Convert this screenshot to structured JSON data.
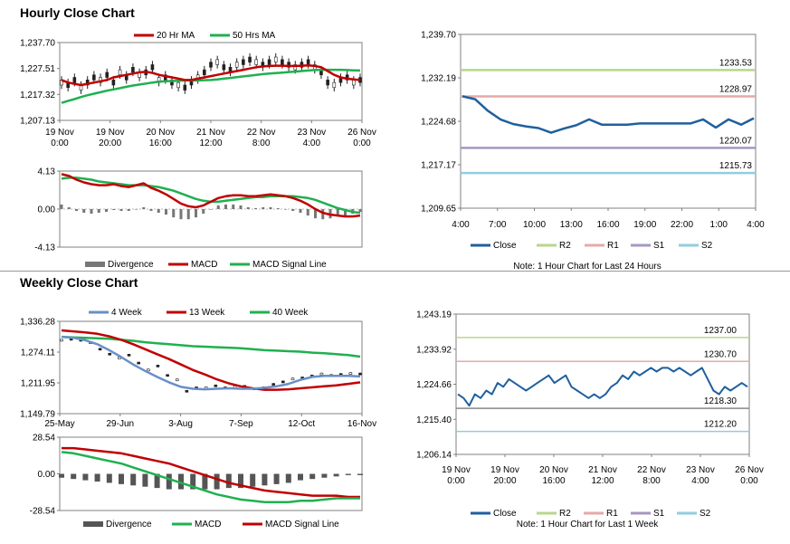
{
  "sections": {
    "hourly_title": "Hourly Close Chart",
    "weekly_title": "Weekly Close Chart"
  },
  "colors": {
    "close": "#1f5f9e",
    "ma20": "#c00000",
    "ma50": "#20b050",
    "macd_red": "#c00000",
    "signal_green": "#20b050",
    "divergence": "#777777",
    "r2": "#b8d68c",
    "r1": "#e6a9a9",
    "s1": "#a896c0",
    "s2": "#92cddc",
    "wk4": "#6a8fc8",
    "wk13": "#c00000",
    "wk40": "#20b050"
  },
  "chart_data": [
    {
      "id": "hourly_price",
      "type": "line",
      "legend": [
        "20 Hr MA",
        "50 Hrs MA"
      ],
      "y_ticks": [
        "1,237.70",
        "1,227.51",
        "1,217.32",
        "1,207.13"
      ],
      "ylim": [
        1207.13,
        1237.7
      ],
      "x_ticks": [
        [
          "19 Nov",
          "0:00"
        ],
        [
          "19 Nov",
          "20:00"
        ],
        [
          "20 Nov",
          "16:00"
        ],
        [
          "21 Nov",
          "12:00"
        ],
        [
          "22 Nov",
          "8:00"
        ],
        [
          "23 Nov",
          "4:00"
        ],
        [
          "26 Nov",
          "0:00"
        ]
      ],
      "series": [
        {
          "name": "20 Hr MA",
          "values": [
            1223,
            1222,
            1221.5,
            1221,
            1221.5,
            1222,
            1222.5,
            1223,
            1224,
            1224.5,
            1225,
            1225.5,
            1226,
            1226.2,
            1225.8,
            1225,
            1224.5,
            1224,
            1223.5,
            1223,
            1223,
            1223.5,
            1224,
            1224.5,
            1225,
            1225.5,
            1226,
            1226.5,
            1227,
            1227.5,
            1228,
            1228.3,
            1228.5,
            1228.6,
            1228.6,
            1228.5,
            1228.5,
            1228.6,
            1228.7,
            1228.5,
            1228,
            1226.5,
            1225,
            1224,
            1223.5,
            1223.2,
            1223
          ]
        },
        {
          "name": "50 Hrs MA",
          "values": [
            1214,
            1214.8,
            1215.5,
            1216.3,
            1217,
            1217.6,
            1218.2,
            1218.8,
            1219.3,
            1219.8,
            1220.3,
            1220.8,
            1221.2,
            1221.6,
            1222,
            1222.3,
            1222.5,
            1222.6,
            1222.7,
            1222.8,
            1222.8,
            1222.8,
            1222.9,
            1223,
            1223.2,
            1223.5,
            1223.8,
            1224.1,
            1224.4,
            1224.7,
            1225,
            1225.3,
            1225.5,
            1225.7,
            1225.9,
            1226.1,
            1226.3,
            1226.5,
            1226.7,
            1226.9,
            1227,
            1227,
            1227,
            1227,
            1226.9,
            1226.8,
            1226.7
          ]
        }
      ],
      "candles": [
        1222,
        1221,
        1223,
        1220,
        1222,
        1224,
        1223,
        1225,
        1222,
        1226,
        1224,
        1227,
        1225,
        1226,
        1228,
        1223,
        1224,
        1222,
        1221,
        1220,
        1222,
        1224,
        1226,
        1229,
        1230,
        1228,
        1227,
        1229,
        1230,
        1231,
        1230,
        1229,
        1230,
        1231,
        1230,
        1229,
        1228,
        1229,
        1230,
        1228,
        1226,
        1222,
        1221,
        1223,
        1224,
        1222,
        1223
      ]
    },
    {
      "id": "hourly_macd",
      "type": "line",
      "legend": [
        "Divergence",
        "MACD",
        "MACD Signal Line"
      ],
      "y_ticks": [
        "4.13",
        "0.00",
        "-4.13"
      ],
      "ylim": [
        -4.13,
        4.13
      ],
      "series": [
        {
          "name": "MACD",
          "values": [
            3.8,
            3.6,
            3.2,
            2.9,
            2.7,
            2.6,
            2.6,
            2.7,
            2.5,
            2.4,
            2.6,
            2.8,
            2.3,
            2.0,
            1.6,
            1.1,
            0.6,
            0.3,
            0.2,
            0.4,
            0.8,
            1.2,
            1.4,
            1.5,
            1.5,
            1.4,
            1.4,
            1.5,
            1.6,
            1.5,
            1.4,
            1.2,
            0.9,
            0.5,
            0.0,
            -0.4,
            -0.6,
            -0.7,
            -0.8,
            -0.8,
            -0.7
          ]
        },
        {
          "name": "MACD Signal Line",
          "values": [
            3.3,
            3.4,
            3.4,
            3.3,
            3.2,
            3.0,
            2.9,
            2.8,
            2.7,
            2.6,
            2.6,
            2.6,
            2.5,
            2.4,
            2.2,
            2.0,
            1.7,
            1.4,
            1.1,
            0.9,
            0.8,
            0.8,
            0.9,
            1.0,
            1.1,
            1.2,
            1.3,
            1.3,
            1.4,
            1.4,
            1.4,
            1.4,
            1.3,
            1.2,
            1.0,
            0.7,
            0.4,
            0.1,
            -0.1,
            -0.3,
            -0.4
          ]
        },
        {
          "name": "Divergence",
          "values": [
            0.5,
            0.2,
            -0.2,
            -0.4,
            -0.5,
            -0.4,
            -0.3,
            -0.1,
            -0.2,
            -0.2,
            0.0,
            0.2,
            -0.2,
            -0.4,
            -0.6,
            -0.9,
            -1.1,
            -1.1,
            -0.9,
            -0.5,
            0.0,
            0.4,
            0.5,
            0.5,
            0.4,
            0.2,
            0.1,
            0.2,
            0.2,
            0.1,
            0.0,
            -0.2,
            -0.4,
            -0.7,
            -1.0,
            -1.1,
            -1.0,
            -0.8,
            -0.7,
            -0.5,
            -0.3
          ]
        }
      ]
    },
    {
      "id": "hourly_levels",
      "type": "line",
      "y_ticks": [
        "1,239.70",
        "1,232.19",
        "1,224.68",
        "1,217.17",
        "1,209.65"
      ],
      "ylim": [
        1209.65,
        1239.7
      ],
      "x_ticks": [
        "4:00",
        "7:00",
        "10:00",
        "13:00",
        "16:00",
        "19:00",
        "22:00",
        "1:00",
        "4:00"
      ],
      "levels": [
        {
          "name": "R2",
          "value": 1233.53,
          "label": "1233.53"
        },
        {
          "name": "R1",
          "value": 1228.97,
          "label": "1228.97"
        },
        {
          "name": "S1",
          "value": 1220.07,
          "label": "1220.07"
        },
        {
          "name": "S2",
          "value": 1215.73,
          "label": "1215.73"
        }
      ],
      "close": [
        1229,
        1228.5,
        1226.5,
        1225,
        1224.2,
        1223.8,
        1223.5,
        1222.7,
        1223.4,
        1224,
        1225,
        1224.1,
        1224.1,
        1224.1,
        1224.3,
        1224.3,
        1224.3,
        1224.3,
        1224.3,
        1225,
        1223.6,
        1225,
        1224.1,
        1225.2
      ],
      "legend": [
        "Close",
        "R2",
        "R1",
        "S1",
        "S2"
      ],
      "note": "Note: 1 Hour Chart for Last 24 Hours"
    },
    {
      "id": "weekly_price",
      "type": "line",
      "legend": [
        "4 Week",
        "13 Week",
        "40 Week"
      ],
      "y_ticks": [
        "1,336.28",
        "1,274.11",
        "1,211.95",
        "1,149.79"
      ],
      "ylim": [
        1149.79,
        1336.28
      ],
      "x_ticks": [
        "25-May",
        "29-Jun",
        "3-Aug",
        "7-Sep",
        "12-Oct",
        "16-Nov"
      ],
      "series": [
        {
          "name": "4 Week",
          "values": [
            1305,
            1303,
            1298,
            1290,
            1278,
            1264,
            1249,
            1236,
            1224,
            1213,
            1204,
            1200,
            1199,
            1200,
            1201,
            1200,
            1200,
            1202,
            1205,
            1210,
            1218,
            1224,
            1226,
            1226,
            1226,
            1225
          ]
        },
        {
          "name": "13 Week",
          "values": [
            1318,
            1316,
            1314,
            1311,
            1306,
            1299,
            1290,
            1280,
            1270,
            1260,
            1249,
            1238,
            1229,
            1219,
            1211,
            1205,
            1201,
            1198,
            1198,
            1199,
            1201,
            1203,
            1205,
            1207,
            1210,
            1213
          ]
        },
        {
          "name": "40 Week",
          "values": [
            1305,
            1304,
            1303,
            1302,
            1301,
            1299,
            1297,
            1294,
            1292,
            1290,
            1288,
            1286,
            1285,
            1284,
            1283,
            1282,
            1280,
            1278,
            1277,
            1276,
            1275,
            1273,
            1272,
            1270,
            1268,
            1265
          ]
        }
      ],
      "candles": [
        1298,
        1300,
        1298,
        1293,
        1280,
        1270,
        1262,
        1268,
        1252,
        1238,
        1246,
        1227,
        1218,
        1195,
        1202,
        1202,
        1206,
        1202,
        1204,
        1205,
        1200,
        1202,
        1209,
        1214,
        1220,
        1222,
        1226,
        1230,
        1227,
        1229,
        1231,
        1230
      ]
    },
    {
      "id": "weekly_macd",
      "type": "line",
      "legend": [
        "Divergence",
        "MACD",
        "MACD Signal Line"
      ],
      "y_ticks": [
        "28.54",
        "0.00",
        "-28.54"
      ],
      "ylim": [
        -28.54,
        28.54
      ],
      "series": [
        {
          "name": "MACD",
          "values": [
            17,
            16,
            14,
            12,
            10,
            8,
            5,
            2,
            -1,
            -4,
            -7,
            -10,
            -13,
            -16,
            -18,
            -20,
            -21,
            -22,
            -22,
            -22,
            -21,
            -21,
            -20,
            -19,
            -19,
            -19
          ]
        },
        {
          "name": "MACD Signal Line",
          "values": [
            20,
            20,
            19,
            18,
            17,
            16,
            14,
            12,
            10,
            8,
            5,
            2,
            -1,
            -4,
            -7,
            -9,
            -11,
            -13,
            -14,
            -15,
            -16,
            -17,
            -17,
            -17,
            -18,
            -18
          ]
        },
        {
          "name": "Divergence",
          "values": [
            -3,
            -4,
            -5,
            -6,
            -7,
            -8,
            -9,
            -10,
            -11,
            -12,
            -12,
            -12,
            -12,
            -12,
            -11,
            -11,
            -10,
            -9,
            -8,
            -7,
            -5,
            -4,
            -3,
            -2,
            -1,
            -1
          ]
        }
      ]
    },
    {
      "id": "weekly_levels",
      "type": "line",
      "y_ticks": [
        "1,243.19",
        "1,233.92",
        "1,224.66",
        "1,215.40",
        "1,206.14"
      ],
      "ylim": [
        1206.14,
        1243.19
      ],
      "x_ticks": [
        [
          "19 Nov",
          "0:00"
        ],
        [
          "19 Nov",
          "20:00"
        ],
        [
          "20 Nov",
          "16:00"
        ],
        [
          "21 Nov",
          "12:00"
        ],
        [
          "22 Nov",
          "8:00"
        ],
        [
          "23 Nov",
          "4:00"
        ],
        [
          "26 Nov",
          "0:00"
        ]
      ],
      "levels": [
        {
          "name": "R2",
          "value": 1237.0,
          "label": "1237.00"
        },
        {
          "name": "R1",
          "value": 1230.7,
          "label": "1230.70"
        },
        {
          "name": "S1",
          "value": 1218.3,
          "label": "1218.30"
        },
        {
          "name": "S2",
          "value": 1212.2,
          "label": "1212.20"
        }
      ],
      "close": [
        1222,
        1221,
        1219,
        1222,
        1221,
        1223,
        1222,
        1225,
        1224,
        1226,
        1225,
        1224,
        1223,
        1224,
        1225,
        1226,
        1227,
        1225,
        1226,
        1227,
        1224,
        1223,
        1222,
        1221,
        1222,
        1221,
        1222,
        1224,
        1225,
        1227,
        1226,
        1228,
        1227,
        1228,
        1229,
        1228,
        1229,
        1229,
        1228,
        1229,
        1228,
        1227,
        1228,
        1229,
        1226,
        1223,
        1222,
        1224,
        1223,
        1224,
        1225,
        1224
      ],
      "legend": [
        "Close",
        "R2",
        "R1",
        "S1",
        "S2"
      ],
      "note": "Note: 1 Hour Chart for Last 1 Week"
    }
  ]
}
